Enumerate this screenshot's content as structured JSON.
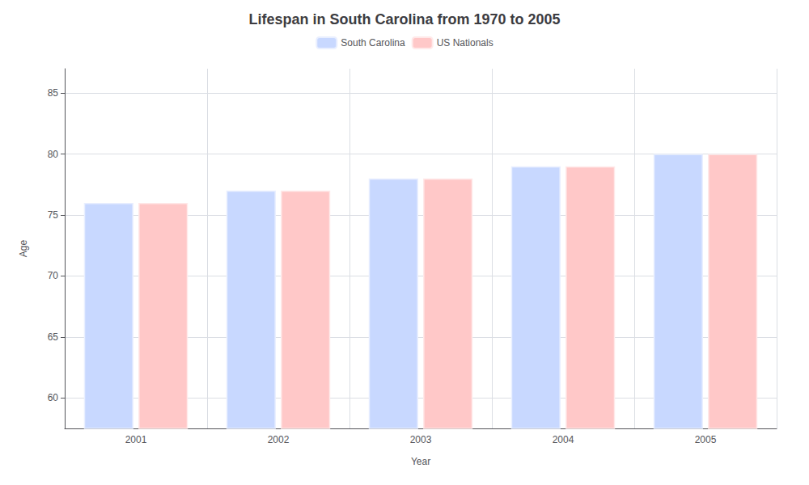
{
  "chart_data": {
    "type": "bar",
    "title": "Lifespan in South Carolina from 1970 to 2005",
    "xlabel": "Year",
    "ylabel": "Age",
    "categories": [
      "2001",
      "2002",
      "2003",
      "2004",
      "2005"
    ],
    "series": [
      {
        "name": "South Carolina",
        "color": "#c8d8ff",
        "values": [
          76,
          77,
          78,
          79,
          80
        ]
      },
      {
        "name": "US Nationals",
        "color": "#ffc8c8",
        "values": [
          76,
          77,
          78,
          79,
          80
        ]
      }
    ],
    "ylim": [
      57.5,
      87
    ],
    "yticks": [
      60,
      65,
      70,
      75,
      80,
      85
    ],
    "grid": true,
    "legend": "top"
  }
}
